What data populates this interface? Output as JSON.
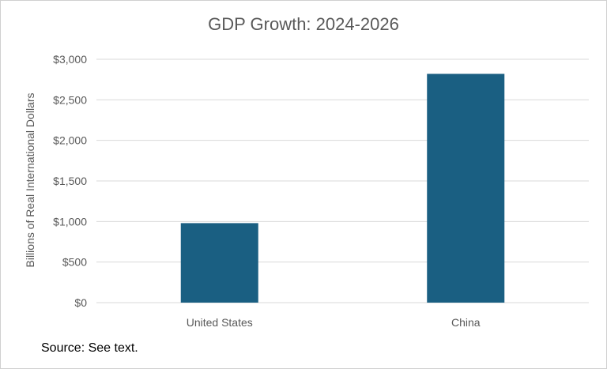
{
  "chart_data": {
    "type": "bar",
    "title": "GDP Growth: 2024-2026",
    "ylabel": "Billions of Real International Dollars",
    "xlabel": "",
    "categories": [
      "United States",
      "China"
    ],
    "values": [
      980,
      2820
    ],
    "ylim": [
      0,
      3000
    ],
    "yticks": [
      0,
      500,
      1000,
      1500,
      2000,
      2500,
      3000
    ],
    "ytick_labels": [
      "$0",
      "$500",
      "$1,000",
      "$1,500",
      "$2,000",
      "$2,500",
      "$3,000"
    ],
    "grid": true,
    "legend": "none",
    "bar_color": "#1a5f82",
    "grid_color": "#d9d9d9",
    "text_color": "#595959"
  },
  "footer": {
    "source": "Source: See text."
  }
}
